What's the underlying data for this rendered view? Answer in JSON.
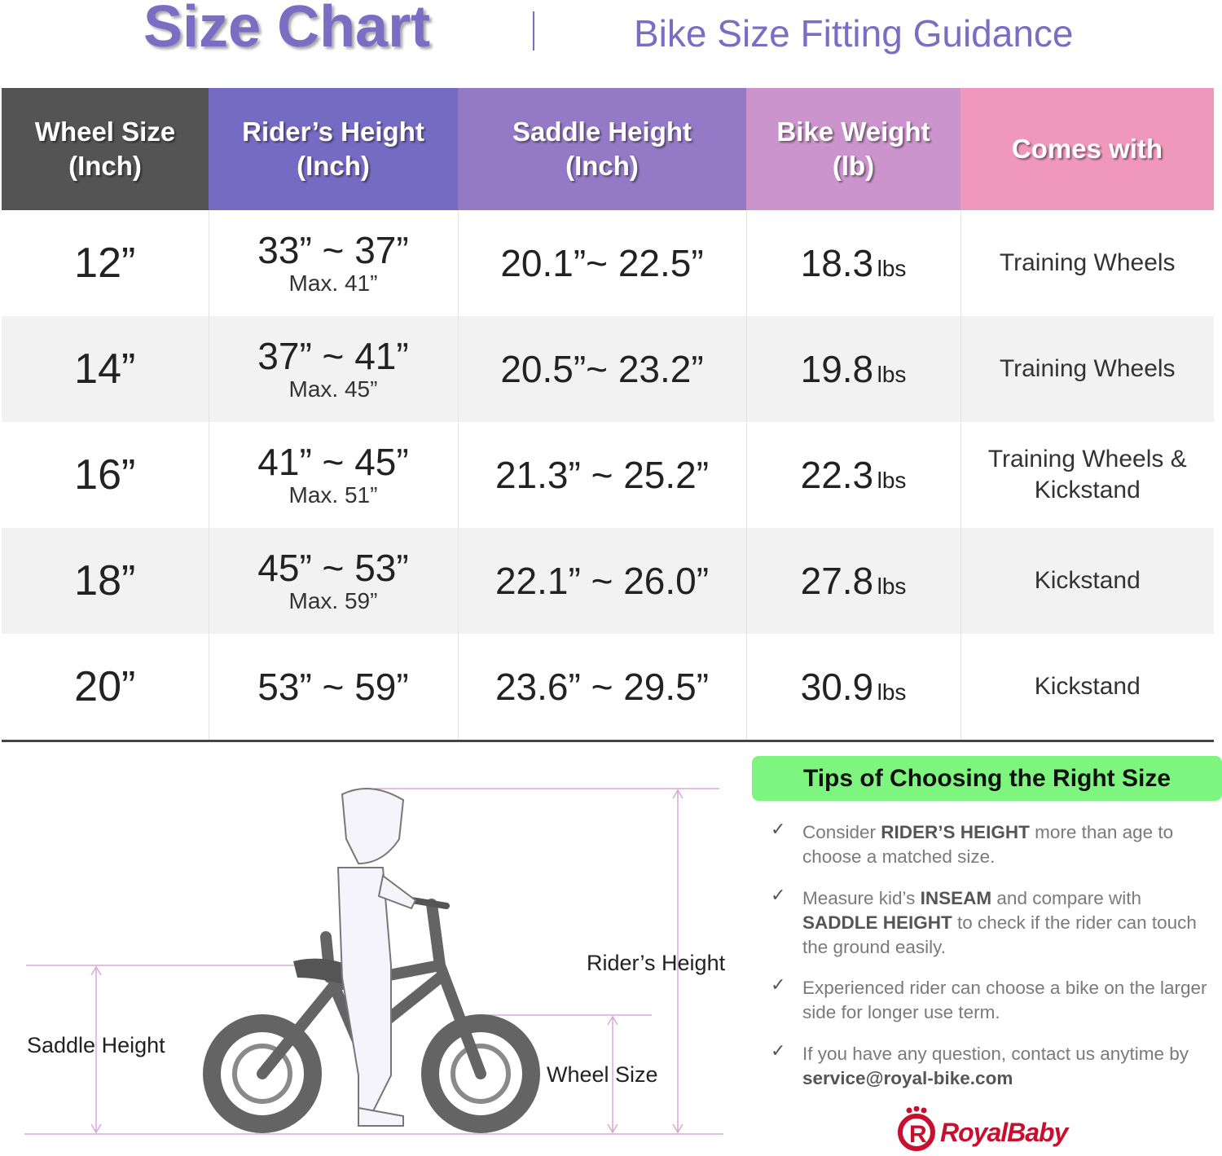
{
  "header": {
    "title": "Size Chart",
    "subtitle": "Bike Size Fitting Guidance"
  },
  "table": {
    "columns": [
      {
        "line1": "Wheel Size",
        "line2": "(Inch)",
        "color": "#545454"
      },
      {
        "line1": "Rider’s Height",
        "line2": "(Inch)",
        "color": "#766bc2"
      },
      {
        "line1": "Saddle Height",
        "line2": "(Inch)",
        "color": "#947ac6"
      },
      {
        "line1": "Bike Weight",
        "line2": "(lb)",
        "color": "#cc94cc"
      },
      {
        "line1": "Comes with",
        "line2": "",
        "color": "#ef98bb"
      }
    ],
    "rows": [
      {
        "wheel": "12”",
        "height": "33” ~ 37”",
        "max": "Max. 41”",
        "saddle": "20.1”~ 22.5”",
        "weight": "18.3",
        "unit": "lbs",
        "comes1": "Training Wheels",
        "comes2": ""
      },
      {
        "wheel": "14”",
        "height": "37” ~ 41”",
        "max": "Max. 45”",
        "saddle": "20.5”~ 23.2”",
        "weight": "19.8",
        "unit": "lbs",
        "comes1": "Training Wheels",
        "comes2": ""
      },
      {
        "wheel": "16”",
        "height": "41” ~ 45”",
        "max": "Max. 51”",
        "saddle": "21.3” ~ 25.2”",
        "weight": "22.3",
        "unit": "lbs",
        "comes1": "Training Wheels &",
        "comes2": "Kickstand"
      },
      {
        "wheel": "18”",
        "height": "45” ~ 53”",
        "max": "Max. 59”",
        "saddle": "22.1” ~ 26.0”",
        "weight": "27.8",
        "unit": "lbs",
        "comes1": "Kickstand",
        "comes2": ""
      },
      {
        "wheel": "20”",
        "height": "53” ~ 59”",
        "max": "",
        "saddle": "23.6” ~ 29.5”",
        "weight": "30.9",
        "unit": "lbs",
        "comes1": "Kickstand",
        "comes2": ""
      }
    ]
  },
  "illustration": {
    "riders_height": "Rider’s Height",
    "saddle_height": "Saddle Height",
    "wheel_size": "Wheel Size"
  },
  "tips": {
    "title": "Tips of Choosing the Right Size",
    "items": [
      {
        "a": "Consider ",
        "b": "RIDER’S HEIGHT",
        "c": " more than age to choose a matched size.",
        "d": "",
        "e": ""
      },
      {
        "a": "Measure kid’s ",
        "b": "INSEAM",
        "c": " and compare with ",
        "d": "SADDLE HEIGHT",
        "e": " to check if the rider can touch the ground easily."
      },
      {
        "a": "Experienced rider can choose a bike on the larger side for longer use term.",
        "b": "",
        "c": "",
        "d": "",
        "e": ""
      },
      {
        "a": "If you have any question, contact us anytime by ",
        "b": "service@royal-bike.com",
        "c": "",
        "d": "",
        "e": ""
      }
    ],
    "check_icon": "✓"
  },
  "logo": {
    "text": "RoyalBaby",
    "color": "#c8102e"
  }
}
